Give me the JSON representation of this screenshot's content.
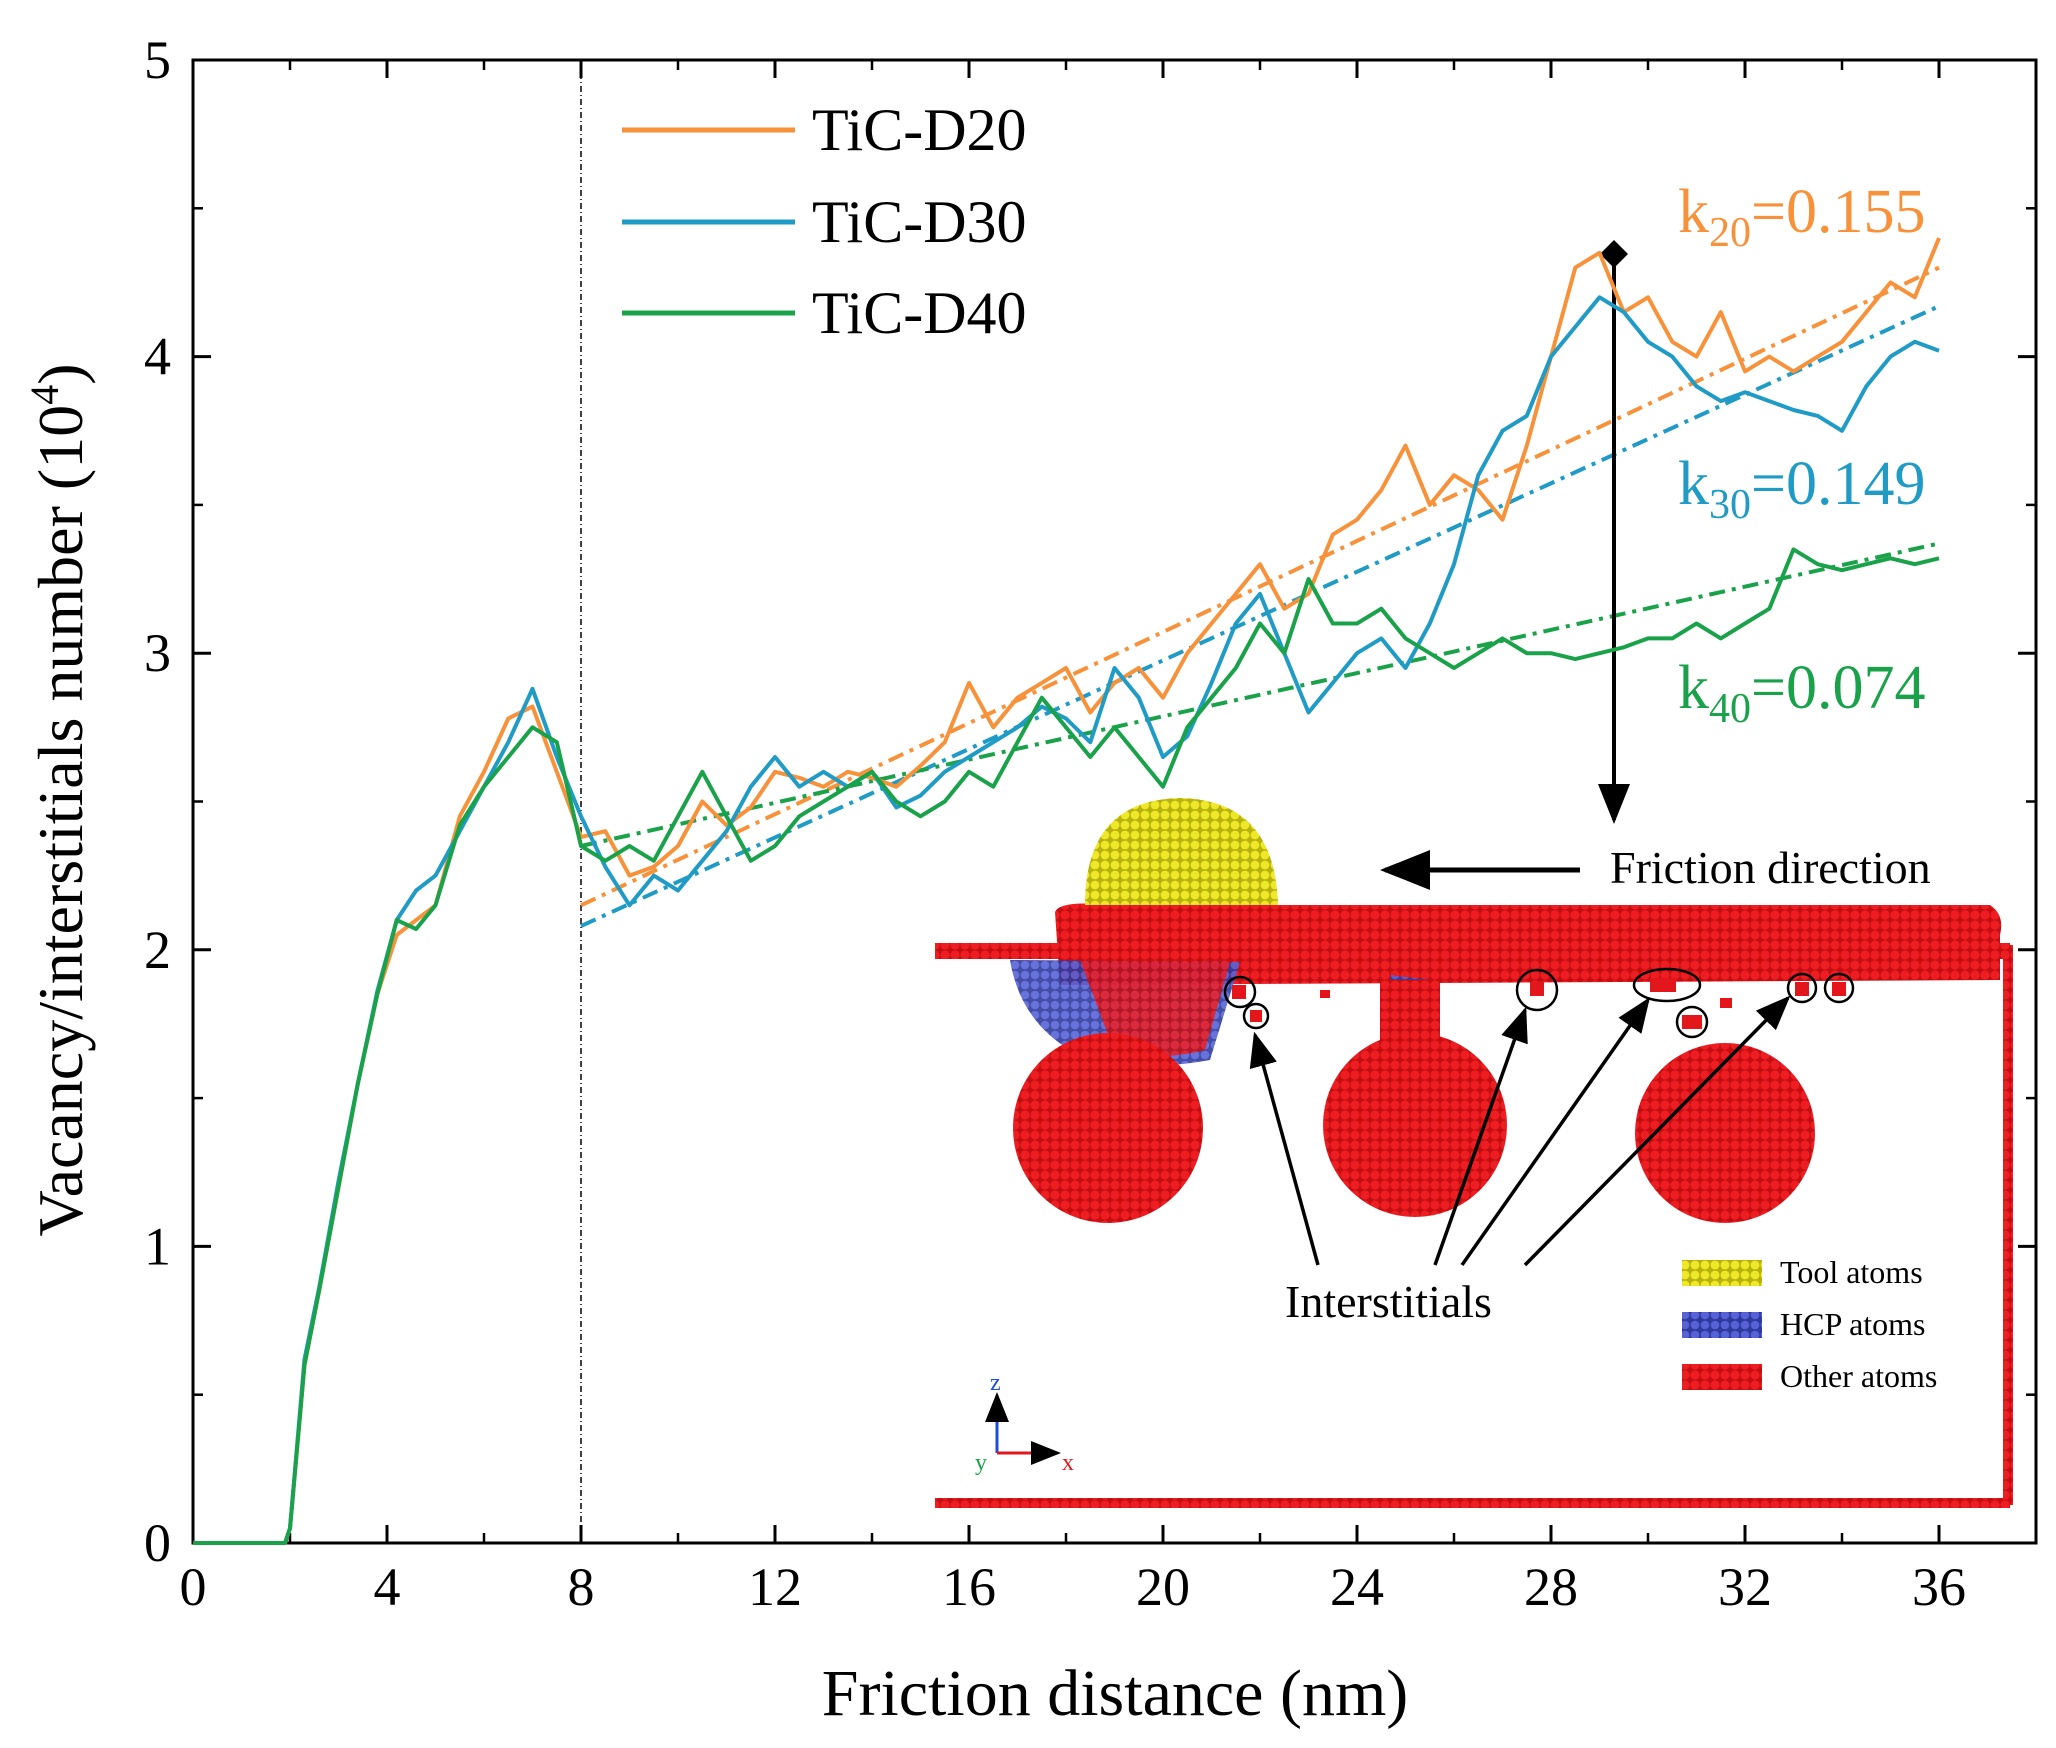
{
  "chart_data": {
    "type": "line",
    "xlabel": "Friction distance (nm)",
    "ylabel_main": "Vacancy/interstitials number (10",
    "ylabel_sup": "4",
    "ylabel_close": ")",
    "xlim": [
      0,
      38
    ],
    "ylim": [
      0,
      5
    ],
    "xticks": [
      0,
      4,
      8,
      12,
      16,
      20,
      24,
      28,
      32,
      36
    ],
    "xtick_labels": [
      "0",
      "4",
      "8",
      "12",
      "16",
      "20",
      "24",
      "28",
      "32",
      "36"
    ],
    "yticks": [
      0,
      1,
      2,
      3,
      4,
      5
    ],
    "ytick_labels": [
      "0",
      "1",
      "2",
      "3",
      "4",
      "5"
    ],
    "vline_x": 8,
    "series": [
      {
        "name": "TiC-D20",
        "color": "#F7923A",
        "x": [
          0,
          1.9,
          2,
          2.3,
          2.6,
          3.0,
          3.4,
          3.8,
          4.2,
          4.6,
          5.0,
          5.5,
          6.0,
          6.5,
          7.0,
          7.5,
          8.0,
          8.5,
          9.0,
          9.5,
          10,
          10.5,
          11,
          11.5,
          12,
          12.5,
          13,
          13.5,
          14,
          14.5,
          15,
          15.5,
          16,
          16.5,
          17,
          17.5,
          18,
          18.5,
          19,
          19.5,
          20,
          20.5,
          21,
          21.5,
          22,
          22.5,
          23,
          23.5,
          24,
          24.5,
          25,
          25.5,
          26,
          26.5,
          27,
          27.5,
          28,
          28.5,
          29,
          29.5,
          30,
          30.5,
          31,
          31.5,
          32,
          32.5,
          33,
          33.5,
          34,
          34.5,
          35,
          35.5,
          36
        ],
        "y": [
          0,
          0,
          0.05,
          0.6,
          0.85,
          1.2,
          1.55,
          1.85,
          2.05,
          2.1,
          2.15,
          2.45,
          2.6,
          2.78,
          2.82,
          2.6,
          2.38,
          2.4,
          2.25,
          2.28,
          2.35,
          2.5,
          2.42,
          2.48,
          2.6,
          2.58,
          2.55,
          2.6,
          2.58,
          2.55,
          2.62,
          2.7,
          2.9,
          2.75,
          2.85,
          2.9,
          2.95,
          2.8,
          2.9,
          2.95,
          2.85,
          3.0,
          3.1,
          3.2,
          3.3,
          3.15,
          3.2,
          3.4,
          3.45,
          3.55,
          3.7,
          3.5,
          3.6,
          3.55,
          3.45,
          3.7,
          4.0,
          4.3,
          4.35,
          4.15,
          4.2,
          4.05,
          4.0,
          4.15,
          3.95,
          4.0,
          3.95,
          4.0,
          4.05,
          4.15,
          4.25,
          4.2,
          4.4
        ]
      },
      {
        "name": "TiC-D30",
        "color": "#1F9BC5",
        "x": [
          0,
          1.9,
          2,
          2.3,
          2.6,
          3.0,
          3.4,
          3.8,
          4.2,
          4.6,
          5.0,
          5.5,
          6.0,
          6.5,
          7.0,
          7.5,
          8.0,
          8.5,
          9.0,
          9.5,
          10,
          10.5,
          11,
          11.5,
          12,
          12.5,
          13,
          13.5,
          14,
          14.5,
          15,
          15.5,
          16,
          16.5,
          17,
          17.5,
          18,
          18.5,
          19,
          19.5,
          20,
          20.5,
          21,
          21.5,
          22,
          22.5,
          23,
          23.5,
          24,
          24.5,
          25,
          25.5,
          26,
          26.5,
          27,
          27.5,
          28,
          28.5,
          29,
          29.5,
          30,
          30.5,
          31,
          31.5,
          32,
          32.5,
          33,
          33.5,
          34,
          34.5,
          35,
          35.5,
          36
        ],
        "y": [
          0,
          0,
          0.05,
          0.62,
          0.86,
          1.22,
          1.55,
          1.86,
          2.1,
          2.2,
          2.25,
          2.4,
          2.55,
          2.7,
          2.88,
          2.65,
          2.45,
          2.28,
          2.15,
          2.25,
          2.2,
          2.3,
          2.4,
          2.55,
          2.65,
          2.55,
          2.6,
          2.55,
          2.6,
          2.48,
          2.52,
          2.6,
          2.65,
          2.7,
          2.75,
          2.82,
          2.78,
          2.7,
          2.95,
          2.85,
          2.65,
          2.72,
          2.9,
          3.1,
          3.2,
          3.0,
          2.8,
          2.9,
          3.0,
          3.05,
          2.95,
          3.1,
          3.3,
          3.6,
          3.75,
          3.8,
          4.0,
          4.1,
          4.2,
          4.15,
          4.05,
          4.0,
          3.9,
          3.85,
          3.88,
          3.85,
          3.82,
          3.8,
          3.75,
          3.9,
          4.0,
          4.05,
          4.02
        ]
      },
      {
        "name": "TiC-D40",
        "color": "#1AA24A",
        "x": [
          0,
          1.9,
          2,
          2.3,
          2.6,
          3.0,
          3.4,
          3.8,
          4.2,
          4.6,
          5.0,
          5.5,
          6.0,
          6.5,
          7.0,
          7.5,
          8.0,
          8.5,
          9.0,
          9.5,
          10,
          10.5,
          11,
          11.5,
          12,
          12.5,
          13,
          13.5,
          14,
          14.5,
          15,
          15.5,
          16,
          16.5,
          17,
          17.5,
          18,
          18.5,
          19,
          19.5,
          20,
          20.5,
          21,
          21.5,
          22,
          22.5,
          23,
          23.5,
          24,
          24.5,
          25,
          25.5,
          26,
          26.5,
          27,
          27.5,
          28,
          28.5,
          29,
          29.5,
          30,
          30.5,
          31,
          31.5,
          32,
          32.5,
          33,
          33.5,
          34,
          34.5,
          35,
          35.5,
          36
        ],
        "y": [
          0,
          0,
          0.05,
          0.6,
          0.85,
          1.2,
          1.55,
          1.85,
          2.1,
          2.07,
          2.15,
          2.42,
          2.55,
          2.65,
          2.75,
          2.7,
          2.35,
          2.3,
          2.35,
          2.3,
          2.45,
          2.6,
          2.45,
          2.3,
          2.35,
          2.45,
          2.5,
          2.55,
          2.6,
          2.5,
          2.45,
          2.5,
          2.6,
          2.55,
          2.7,
          2.85,
          2.75,
          2.65,
          2.75,
          2.65,
          2.55,
          2.75,
          2.85,
          2.95,
          3.1,
          3.0,
          3.25,
          3.1,
          3.1,
          3.15,
          3.05,
          3.0,
          2.95,
          3.0,
          3.05,
          3.0,
          3.0,
          2.98,
          3.0,
          3.02,
          3.05,
          3.05,
          3.1,
          3.05,
          3.1,
          3.15,
          3.35,
          3.3,
          3.28,
          3.3,
          3.32,
          3.3,
          3.32
        ]
      }
    ],
    "fit_lines": [
      {
        "name": "k20 fit",
        "color": "#F7923A",
        "x": [
          8,
          36
        ],
        "y": [
          2.15,
          4.3
        ]
      },
      {
        "name": "k30 fit",
        "color": "#1F9BC5",
        "x": [
          8,
          36
        ],
        "y": [
          2.08,
          4.17
        ]
      },
      {
        "name": "k40 fit",
        "color": "#1AA24A",
        "x": [
          8,
          36
        ],
        "y": [
          2.35,
          3.37
        ]
      }
    ],
    "slope_labels": [
      {
        "base": "k",
        "sub": "20",
        "value": "=0.155",
        "color": "#F7923A"
      },
      {
        "base": "k",
        "sub": "30",
        "value": "=0.149",
        "color": "#1F9BC5"
      },
      {
        "base": "k",
        "sub": "40",
        "value": "=0.074",
        "color": "#1AA24A"
      }
    ],
    "legend": [
      "TiC-D20",
      "TiC-D30",
      "TiC-D40"
    ],
    "legend_position": "top-left"
  },
  "inset": {
    "friction_direction_label": "Friction direction",
    "interstitials_label": "Interstitials",
    "legend": [
      {
        "label": "Tool atoms",
        "color": "#E9E31C"
      },
      {
        "label": "HCP atoms",
        "color": "#4652C8"
      },
      {
        "label": "Other atoms",
        "color": "#E2161B"
      }
    ],
    "axes_z": "z",
    "axes_y": "y",
    "axes_x": "x"
  }
}
